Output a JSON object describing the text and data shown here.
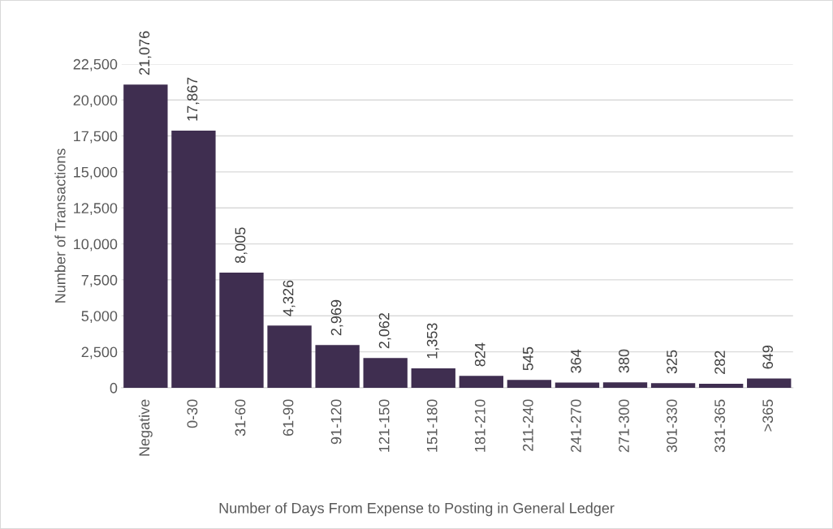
{
  "chart_data": {
    "type": "bar",
    "xlabel": "Number of Days From Expense to Posting in General Ledger",
    "ylabel": "Number of Transactions",
    "categories": [
      "Negative",
      "0-30",
      "31-60",
      "61-90",
      "91-120",
      "121-150",
      "151-180",
      "181-210",
      "211-240",
      "241-270",
      "271-300",
      "301-330",
      "331-365",
      ">365"
    ],
    "values": [
      21076,
      17867,
      8005,
      4326,
      2969,
      2062,
      1353,
      824,
      545,
      364,
      380,
      325,
      282,
      649
    ],
    "value_labels": [
      "21,076",
      "17,867",
      "8,005",
      "4,326",
      "2,969",
      "2,062",
      "1,353",
      "824",
      "545",
      "364",
      "380",
      "325",
      "282",
      "649"
    ],
    "color": "#3f2e50",
    "ylim": [
      0,
      22500
    ],
    "yticks": [
      0,
      {
        "value": 2500,
        "label": "2,500"
      },
      {
        "value": 5000,
        "label": "5,000"
      },
      {
        "value": 7500,
        "label": "7,500"
      },
      {
        "value": 10000,
        "label": "10,000"
      },
      {
        "value": 12500,
        "label": "12,500"
      },
      {
        "value": 15000,
        "label": "15,000"
      },
      {
        "value": 17500,
        "label": "17,500"
      },
      {
        "value": 20000,
        "label": "20,000"
      },
      {
        "value": 22500,
        "label": "22,500"
      }
    ],
    "grid": "y",
    "legend": false
  }
}
